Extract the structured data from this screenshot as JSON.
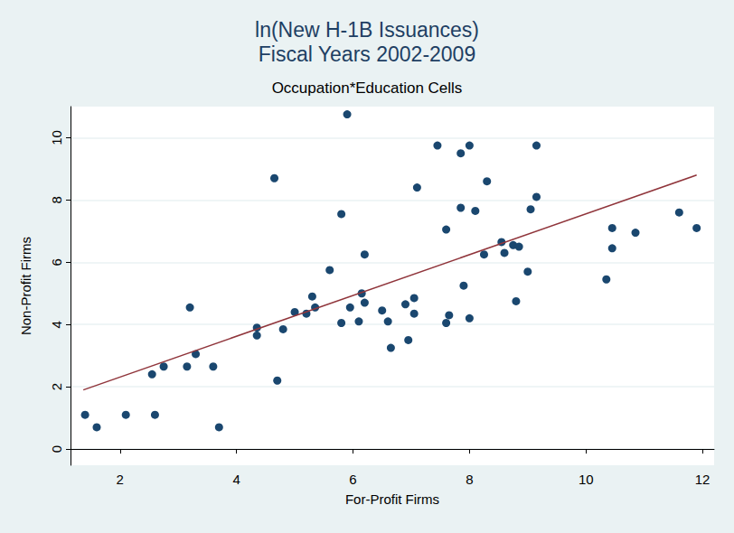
{
  "chart_data": {
    "type": "scatter",
    "title": "ln(New H-1B Issuances)\nFiscal Years 2002-2009",
    "subtitle": "Occupation*Education Cells",
    "x_label": "For-Profit Firms",
    "y_label": "Non-Profit Firms",
    "xlim": [
      1.15,
      12.2
    ],
    "xticks": [
      2,
      4,
      6,
      8,
      10,
      12
    ],
    "ylim": [
      -0.52,
      11.0
    ],
    "yticks": [
      0,
      2,
      4,
      6,
      8,
      10
    ],
    "grid": true,
    "series": [
      {
        "type": "scatter",
        "color": "#1a476f",
        "marker": "circle",
        "x": [
          1.4,
          1.6,
          2.1,
          2.55,
          2.6,
          2.75,
          3.15,
          3.2,
          3.3,
          3.6,
          3.7,
          4.35,
          4.35,
          4.65,
          4.7,
          4.8,
          5.0,
          5.2,
          5.3,
          5.35,
          5.6,
          5.8,
          5.8,
          5.9,
          5.95,
          6.1,
          6.15,
          6.2,
          6.2,
          6.5,
          6.6,
          6.65,
          6.9,
          6.95,
          7.05,
          7.05,
          7.1,
          7.45,
          7.6,
          7.6,
          7.65,
          7.85,
          7.85,
          7.9,
          8.0,
          8.0,
          8.1,
          8.25,
          8.3,
          8.55,
          8.6,
          8.75,
          8.8,
          8.85,
          9.0,
          9.05,
          9.15,
          9.15,
          10.35,
          10.45,
          10.45,
          10.85,
          11.6,
          11.9
        ],
        "values": [
          1.1,
          0.7,
          1.1,
          2.4,
          1.1,
          2.65,
          2.65,
          4.55,
          3.05,
          2.65,
          0.7,
          3.9,
          3.65,
          8.7,
          2.2,
          3.85,
          4.4,
          4.35,
          4.9,
          4.55,
          5.75,
          4.05,
          7.55,
          10.75,
          4.55,
          4.1,
          5.0,
          4.7,
          6.25,
          4.45,
          4.1,
          3.25,
          4.65,
          3.5,
          4.35,
          4.85,
          8.4,
          9.75,
          7.05,
          4.05,
          4.3,
          7.75,
          9.5,
          5.25,
          4.2,
          9.75,
          7.65,
          6.25,
          8.6,
          6.65,
          6.3,
          6.55,
          4.75,
          6.5,
          5.7,
          7.7,
          8.1,
          9.75,
          5.45,
          7.1,
          6.45,
          6.95,
          7.6,
          7.1
        ]
      },
      {
        "type": "line",
        "color": "#90353b",
        "line_style": "solid",
        "x": [
          1.37,
          11.9
        ],
        "values": [
          1.9,
          8.8
        ]
      }
    ]
  }
}
